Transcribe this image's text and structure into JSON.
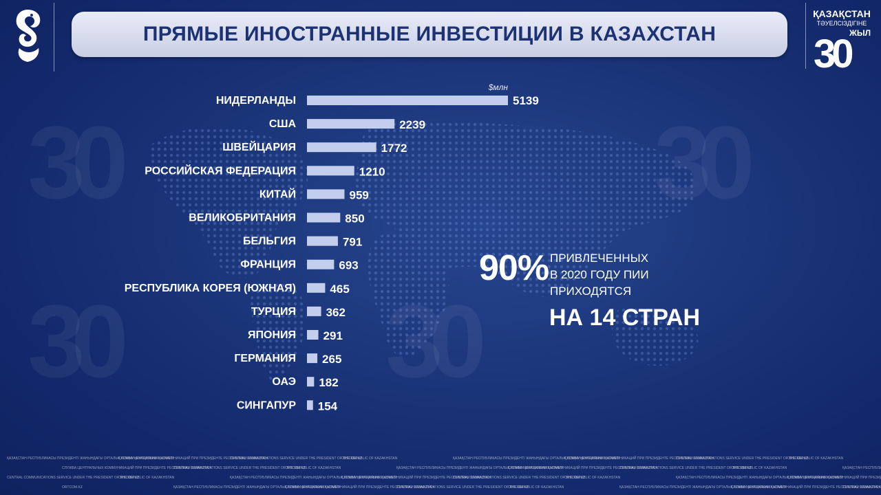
{
  "title": "ПРЯМЫЕ ИНОСТРАННЫЕ ИНВЕСТИЦИИ В КАЗАХСТАН",
  "logo_right": {
    "line1": "ҚАЗАҚСТАН",
    "line2": "ТӘУЕЛСІЗДІГІНЕ",
    "line3": "ЖЫЛ",
    "number": "30"
  },
  "callout": {
    "percent": "90%",
    "line1": "ПРИВЛЕЧЕННЫХ",
    "line2": "В 2020 ГОДУ ПИИ",
    "line3": "ПРИХОДЯТСЯ",
    "emphasis": "НА 14 СТРАН"
  },
  "footer_texts": [
    "ҚАЗАҚСТАН РЕСПУБЛИКАСЫ ПРЕЗИДЕНТІ ЖАНЫНДАҒЫ ОРТАЛЫҚ КОММУНИКАЦИЯЛАР ҚЫЗМЕТІ",
    "СЛУЖБА ЦЕНТРАЛЬНЫХ КОММУНИКАЦИЙ ПРИ ПРЕЗИДЕНТЕ РЕСПУБЛИКИ КАЗАХСТАН",
    "CENTRAL COMMUNICATIONS SERVICE UNDER THE PRESIDENT OF THE REPUBLIC OF KAZAKHSTAN",
    "ORTCOM.KZ"
  ],
  "colors": {
    "bar": "#c3cdec",
    "background": "#1a3478",
    "title_text": "#1d3273"
  },
  "chart_data": {
    "type": "bar",
    "orientation": "horizontal",
    "unit_label": "$млн",
    "categories": [
      "НИДЕРЛАНДЫ",
      "США",
      "ШВЕЙЦАРИЯ",
      "РОССИЙСКАЯ ФЕДЕРАЦИЯ",
      "КИТАЙ",
      "ВЕЛИКОБРИТАНИЯ",
      "БЕЛЬГИЯ",
      "ФРАНЦИЯ",
      "РЕСПУБЛИКА КОРЕЯ (ЮЖНАЯ)",
      "ТУРЦИЯ",
      "ЯПОНИЯ",
      "ГЕРМАНИЯ",
      "ОАЭ",
      "СИНГАПУР"
    ],
    "values": [
      5139,
      2239,
      1772,
      1210,
      959,
      850,
      791,
      693,
      465,
      362,
      291,
      265,
      182,
      154
    ],
    "xlim": [
      0,
      5139
    ],
    "grid": false,
    "legend": "none"
  }
}
